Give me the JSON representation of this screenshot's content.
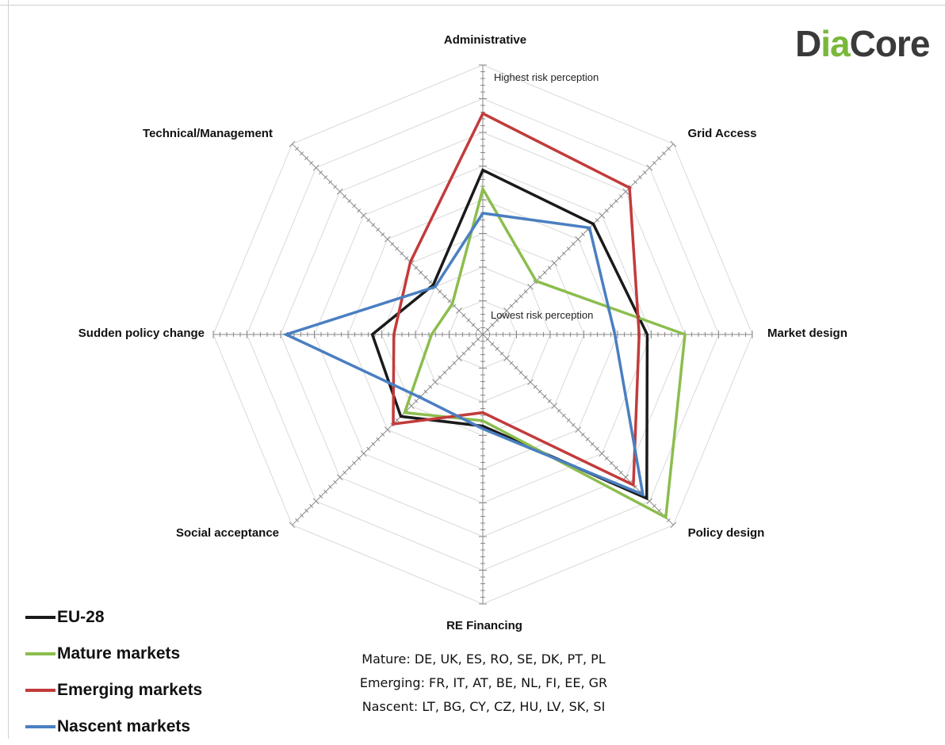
{
  "logo": {
    "prefix": "D",
    "accent": "ia",
    "suffix": "Core"
  },
  "chart_data": {
    "type": "radar",
    "axes": [
      "Administrative",
      "Grid Access",
      "Market design",
      "Policy design",
      "RE Financing",
      "Social acceptance",
      "Sudden policy change",
      "Technical/Management"
    ],
    "scale_top_label": "Highest risk perception",
    "scale_bottom_label": "Lowest risk perception",
    "rmax": 1.0,
    "series": [
      {
        "name": "EU-28",
        "color": "#1a1a1a",
        "values": [
          0.61,
          0.58,
          0.61,
          0.86,
          0.34,
          0.43,
          0.41,
          0.26
        ]
      },
      {
        "name": "Mature markets",
        "color": "#8cbd4e",
        "values": [
          0.54,
          0.28,
          0.75,
          0.96,
          0.32,
          0.41,
          0.19,
          0.16
        ]
      },
      {
        "name": "Emerging markets",
        "color": "#c23b3b",
        "values": [
          0.82,
          0.77,
          0.58,
          0.79,
          0.29,
          0.47,
          0.33,
          0.38
        ]
      },
      {
        "name": "Nascent markets",
        "color": "#4a7fc1",
        "values": [
          0.45,
          0.56,
          0.49,
          0.84,
          0.35,
          0.33,
          0.73,
          0.25
        ]
      }
    ],
    "grid": true,
    "legend_position": "bottom-left"
  },
  "notes": [
    "Mature: DE, UK, ES, RO, SE, DK, PT, PL",
    "Emerging: FR, IT, AT, BE, NL, FI, EE, GR",
    "Nascent: LT, BG, CY, CZ, HU, LV, SK, SI"
  ]
}
